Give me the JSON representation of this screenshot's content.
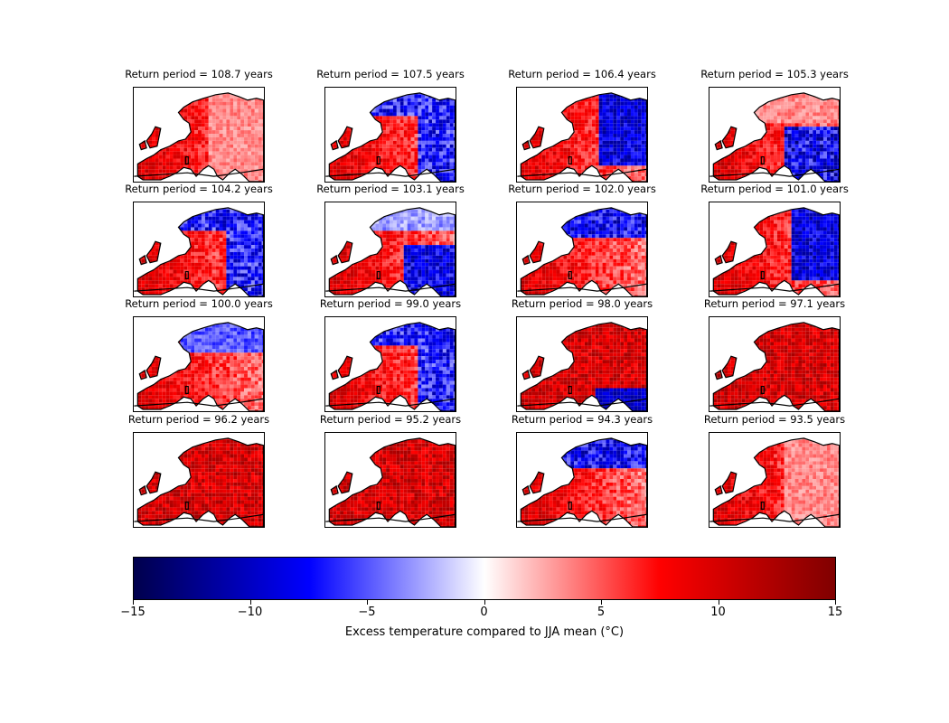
{
  "panels": [
    {
      "title": "Return period = 108.7 years",
      "pattern": "red-east-light"
    },
    {
      "title": "Return period = 107.5 years",
      "pattern": "blue-north-east"
    },
    {
      "title": "Return period = 106.4 years",
      "pattern": "blue-east"
    },
    {
      "title": "Return period = 105.3 years",
      "pattern": "blue-east-south"
    },
    {
      "title": "Return period = 104.2 years",
      "pattern": "blue-north-east"
    },
    {
      "title": "Return period = 103.1 years",
      "pattern": "blue-south-east"
    },
    {
      "title": "Return period = 102.0 years",
      "pattern": "blue-north"
    },
    {
      "title": "Return period = 101.0 years",
      "pattern": "blue-east"
    },
    {
      "title": "Return period = 100.0 years",
      "pattern": "red-scand-blue"
    },
    {
      "title": "Return period = 99.0 years",
      "pattern": "blue-north-east"
    },
    {
      "title": "Return period = 98.0 years",
      "pattern": "red-all-south-blue"
    },
    {
      "title": "Return period = 97.1 years",
      "pattern": "red-all"
    },
    {
      "title": "Return period = 96.2 years",
      "pattern": "red-all"
    },
    {
      "title": "Return period = 95.2 years",
      "pattern": "red-all"
    },
    {
      "title": "Return period = 94.3 years",
      "pattern": "blue-north"
    },
    {
      "title": "Return period = 93.5 years",
      "pattern": "red-east-light"
    }
  ],
  "colorbar": {
    "min": -15,
    "max": 15,
    "ticks": [
      "−15",
      "−10",
      "−5",
      "0",
      "5",
      "10",
      "15"
    ],
    "tick_values": [
      -15,
      -10,
      -5,
      0,
      5,
      10,
      15
    ],
    "label": "Excess temperature compared to JJA mean (°C)",
    "colormap": "seismic",
    "colors": [
      "#00004c",
      "#0000ff",
      "#ffffff",
      "#ff0000",
      "#800000"
    ]
  }
}
